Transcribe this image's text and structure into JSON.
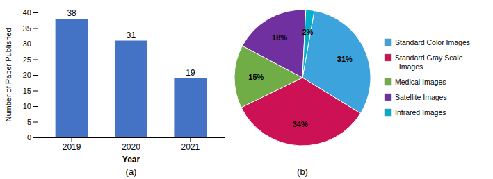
{
  "chart_data": [
    {
      "type": "bar",
      "categories": [
        "2019",
        "2020",
        "2021"
      ],
      "values": [
        38,
        31,
        19
      ],
      "color": "#4472C4",
      "xlabel": "Year",
      "ylabel": "Number of Paper Published",
      "ylim": [
        0,
        40
      ],
      "yticks": [
        0,
        5,
        10,
        15,
        20,
        25,
        30,
        35,
        40
      ],
      "data_labels": true,
      "annotations": [
        "(a)"
      ]
    },
    {
      "type": "pie",
      "categories": [
        "Standard Color Images",
        "Standard Gray Scale\n  Images",
        "Medical Images",
        "Satellite Images",
        "Infrared Images"
      ],
      "values": [
        31,
        34,
        15,
        18,
        2
      ],
      "value_labels": [
        "31%",
        "34%",
        "15%",
        "18%",
        "2%"
      ],
      "colors": [
        "#3CA3DC",
        "#CC1155",
        "#70AD47",
        "#7030A0",
        "#00B0C8"
      ],
      "data_labels": true,
      "legend": "right",
      "annotations": [
        "(b)"
      ]
    }
  ]
}
